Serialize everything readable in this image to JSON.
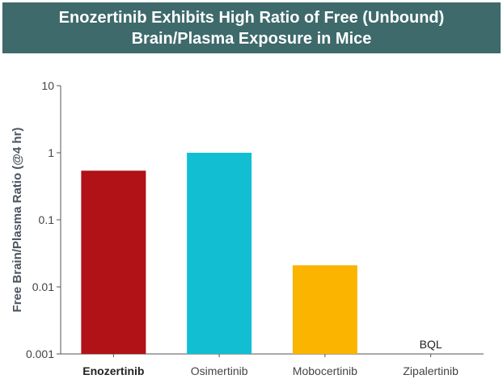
{
  "chart_data": {
    "type": "bar",
    "title_lines": [
      "Enozertinib Exhibits High Ratio of Free (Unbound)",
      "Brain/Plasma Exposure in Mice"
    ],
    "ylabel": "Free Brain/Plasma Ratio (@4 hr)",
    "xlabel": "",
    "yscale": "log",
    "ylim": [
      0.001,
      10
    ],
    "yticks": [
      "10",
      "1",
      "0.1",
      "0.01",
      "0.001"
    ],
    "categories": [
      "Enozertinib",
      "Osimertinib",
      "Mobocertinib",
      "Zipalertinib"
    ],
    "values": [
      0.54,
      1.0,
      0.021,
      null
    ],
    "bar_colors": [
      "#b01217",
      "#12bfd2",
      "#fbb400",
      null
    ],
    "annotations": [
      "",
      "",
      "",
      "BQL"
    ],
    "highlight_category": "Enozertinib",
    "grid": false
  }
}
